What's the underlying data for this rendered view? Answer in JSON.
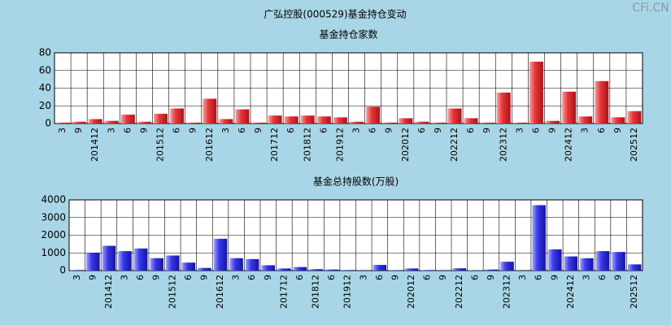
{
  "title": "广弘控股(000529)基金持仓变动",
  "watermark": "CFi.CN",
  "chart_data": [
    {
      "type": "bar",
      "title": "基金持仓家数",
      "color": "red",
      "categories": [
        "3",
        "9",
        "201412",
        "3",
        "6",
        "9",
        "201512",
        "6",
        "9",
        "201612",
        "3",
        "6",
        "9",
        "201712",
        "6",
        "201812",
        "6",
        "201912",
        "3",
        "6",
        "9",
        "202012",
        "6",
        "9",
        "202212",
        "6",
        "9",
        "202312",
        "3",
        "6",
        "9",
        "202412",
        "3",
        "6",
        "9",
        "202512"
      ],
      "values": [
        1,
        2,
        5,
        3,
        10,
        2,
        11,
        17,
        1,
        28,
        5,
        16,
        1,
        9,
        8,
        9,
        8,
        7,
        2,
        19,
        1,
        6,
        2,
        1,
        17,
        6,
        1,
        35,
        1,
        70,
        3,
        36,
        8,
        48,
        7,
        14
      ],
      "ylim": [
        0,
        80
      ],
      "yticks": [
        0,
        20,
        40,
        60,
        80
      ],
      "grid": true
    },
    {
      "type": "bar",
      "title": "基金总持股数(万股)",
      "color": "blue",
      "categories": [
        "3",
        "9",
        "201412",
        "3",
        "6",
        "9",
        "201512",
        "6",
        "9",
        "201612",
        "3",
        "6",
        "9",
        "201712",
        "6",
        "201812",
        "6",
        "201912",
        "3",
        "6",
        "9",
        "202012",
        "6",
        "9",
        "202212",
        "6",
        "9",
        "202312",
        "3",
        "6",
        "9",
        "202412",
        "3",
        "6",
        "9",
        "202512"
      ],
      "values": [
        30,
        1000,
        1400,
        1100,
        1250,
        700,
        850,
        450,
        150,
        1800,
        700,
        650,
        300,
        120,
        200,
        80,
        60,
        30,
        10,
        320,
        20,
        120,
        30,
        10,
        130,
        20,
        60,
        500,
        10,
        3700,
        1200,
        800,
        700,
        1100,
        1050,
        350
      ],
      "ylim": [
        0,
        4000
      ],
      "yticks": [
        0,
        1000,
        2000,
        3000,
        4000
      ],
      "grid": true
    }
  ]
}
